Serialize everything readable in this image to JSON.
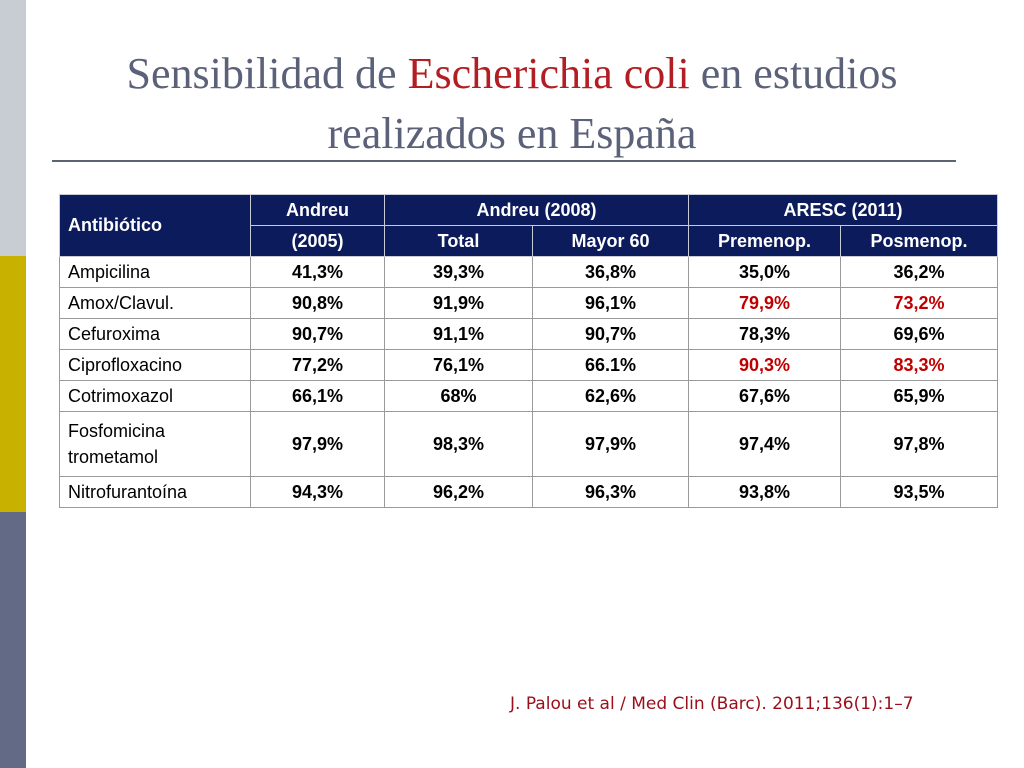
{
  "title": {
    "part1": "Sensibilidad de ",
    "highlight": "Escherichia coli",
    "part2": " en estudios realizados en España"
  },
  "table": {
    "header": {
      "antibiotic": "Antibiótico",
      "study1_line1": "Andreu",
      "study1_line2": "(2005)",
      "study2": "Andreu (2008)",
      "study3": "ARESC (2011)",
      "sub_total": "Total",
      "sub_mayor60": "Mayor 60",
      "sub_premenop": "Premenop.",
      "sub_posmenop": "Posmenop."
    },
    "rows": [
      {
        "name": "Ampicilina",
        "values": [
          "41,3%",
          "39,3%",
          "36,8%",
          "35,0%",
          "36,2%"
        ]
      },
      {
        "name": "Amox/Clavul.",
        "values": [
          "90,8%",
          "91,9%",
          "96,1%",
          "79,9%",
          "73,2%"
        ]
      },
      {
        "name": "Cefuroxima",
        "values": [
          "90,7%",
          "91,1%",
          "90,7%",
          "78,3%",
          "69,6%"
        ]
      },
      {
        "name": "Ciprofloxacino",
        "values": [
          "77,2%",
          "76,1%",
          "66.1%",
          "90,3%",
          "83,3%"
        ]
      },
      {
        "name": "Cotrimoxazol",
        "values": [
          "66,1%",
          "68%",
          "62,6%",
          "67,6%",
          "65,9%"
        ]
      },
      {
        "name_line1": "Fosfomicina",
        "name_line2": "trometamol",
        "values": [
          "97,9%",
          "98,3%",
          "97,9%",
          "97,4%",
          "97,8%"
        ]
      },
      {
        "name": "Nitrofurantoína",
        "values": [
          "94,3%",
          "96,2%",
          "96,3%",
          "93,8%",
          "93,5%"
        ]
      }
    ],
    "highlight_color": "#c00000"
  },
  "citation": "J. Palou et al / Med Clin (Barc). 2011;136(1):1–7"
}
